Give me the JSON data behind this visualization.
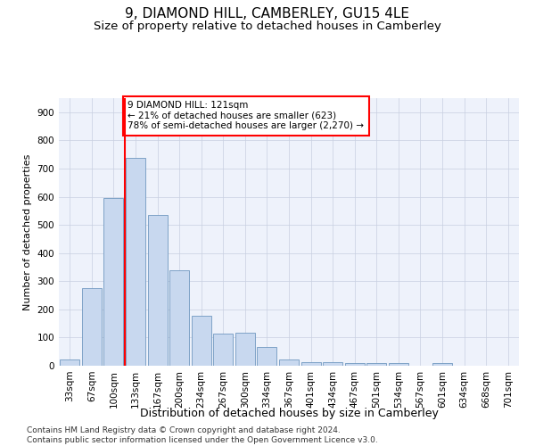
{
  "title": "9, DIAMOND HILL, CAMBERLEY, GU15 4LE",
  "subtitle": "Size of property relative to detached houses in Camberley",
  "xlabel": "Distribution of detached houses by size in Camberley",
  "ylabel": "Number of detached properties",
  "categories": [
    "33sqm",
    "67sqm",
    "100sqm",
    "133sqm",
    "167sqm",
    "200sqm",
    "234sqm",
    "267sqm",
    "300sqm",
    "334sqm",
    "367sqm",
    "401sqm",
    "434sqm",
    "467sqm",
    "501sqm",
    "534sqm",
    "567sqm",
    "601sqm",
    "634sqm",
    "668sqm",
    "701sqm"
  ],
  "values": [
    22,
    275,
    595,
    738,
    535,
    340,
    178,
    115,
    118,
    68,
    22,
    14,
    12,
    8,
    10,
    9,
    0,
    9,
    0,
    0,
    0
  ],
  "bar_color": "#c8d8ef",
  "bar_edge_color": "#7098c0",
  "highlight_x": "133sqm",
  "highlight_line_color": "red",
  "annotation_text": "9 DIAMOND HILL: 121sqm\n← 21% of detached houses are smaller (623)\n78% of semi-detached houses are larger (2,270) →",
  "annotation_box_color": "white",
  "annotation_box_edge_color": "red",
  "ylim": [
    0,
    950
  ],
  "yticks": [
    0,
    100,
    200,
    300,
    400,
    500,
    600,
    700,
    800,
    900
  ],
  "background_color": "#eef2fb",
  "grid_color": "#c8cfe0",
  "footer": "Contains HM Land Registry data © Crown copyright and database right 2024.\nContains public sector information licensed under the Open Government Licence v3.0.",
  "title_fontsize": 11,
  "subtitle_fontsize": 9.5,
  "xlabel_fontsize": 9,
  "ylabel_fontsize": 8,
  "tick_fontsize": 7.5,
  "footer_fontsize": 6.5
}
